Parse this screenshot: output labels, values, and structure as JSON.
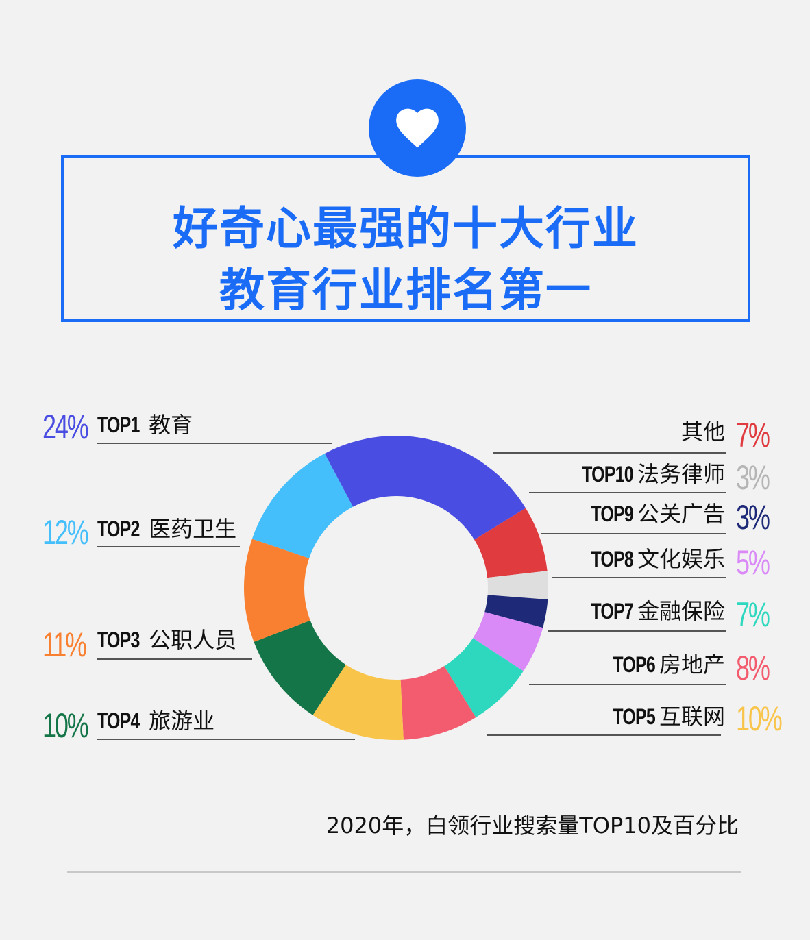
{
  "header": {
    "icon": "heart-icon",
    "title_line1": "好奇心最强的十大行业",
    "title_line2": "教育行业排名第一",
    "accent_color": "#1a6cf6"
  },
  "chart_data": {
    "type": "pie",
    "title": "",
    "caption": "2020年，白领行业搜索量TOP10及百分比",
    "unit": "%",
    "start_category": "TOP1 教育",
    "direction": "clockwise",
    "slices": [
      {
        "rank": "TOP1",
        "name": "教育",
        "value": 24,
        "pct_text": "24%",
        "color": "#4a4de2"
      },
      {
        "rank": "",
        "name": "其他",
        "value": 7,
        "pct_text": "7%",
        "color": "#e03b3f"
      },
      {
        "rank": "TOP10",
        "name": "法务律师",
        "value": 3,
        "pct_text": "3%",
        "color": "#dedede"
      },
      {
        "rank": "TOP9",
        "name": "公关广告",
        "value": 3,
        "pct_text": "3%",
        "color": "#1e2a78"
      },
      {
        "rank": "TOP8",
        "name": "文化娱乐",
        "value": 5,
        "pct_text": "5%",
        "color": "#d98af7"
      },
      {
        "rank": "TOP7",
        "name": "金融保险",
        "value": 7,
        "pct_text": "7%",
        "color": "#2ed8bf"
      },
      {
        "rank": "TOP6",
        "name": "房地产",
        "value": 8,
        "pct_text": "8%",
        "color": "#f35c6f"
      },
      {
        "rank": "TOP5",
        "name": "互联网",
        "value": 10,
        "pct_text": "10%",
        "color": "#f9c44a"
      },
      {
        "rank": "TOP4",
        "name": "旅游业",
        "value": 10,
        "pct_text": "10%",
        "color": "#147548"
      },
      {
        "rank": "TOP3",
        "name": "公职人员",
        "value": 11,
        "pct_text": "11%",
        "color": "#f98030"
      },
      {
        "rank": "TOP2",
        "name": "医药卫生",
        "value": 12,
        "pct_text": "12%",
        "color": "#45bffb"
      }
    ]
  }
}
